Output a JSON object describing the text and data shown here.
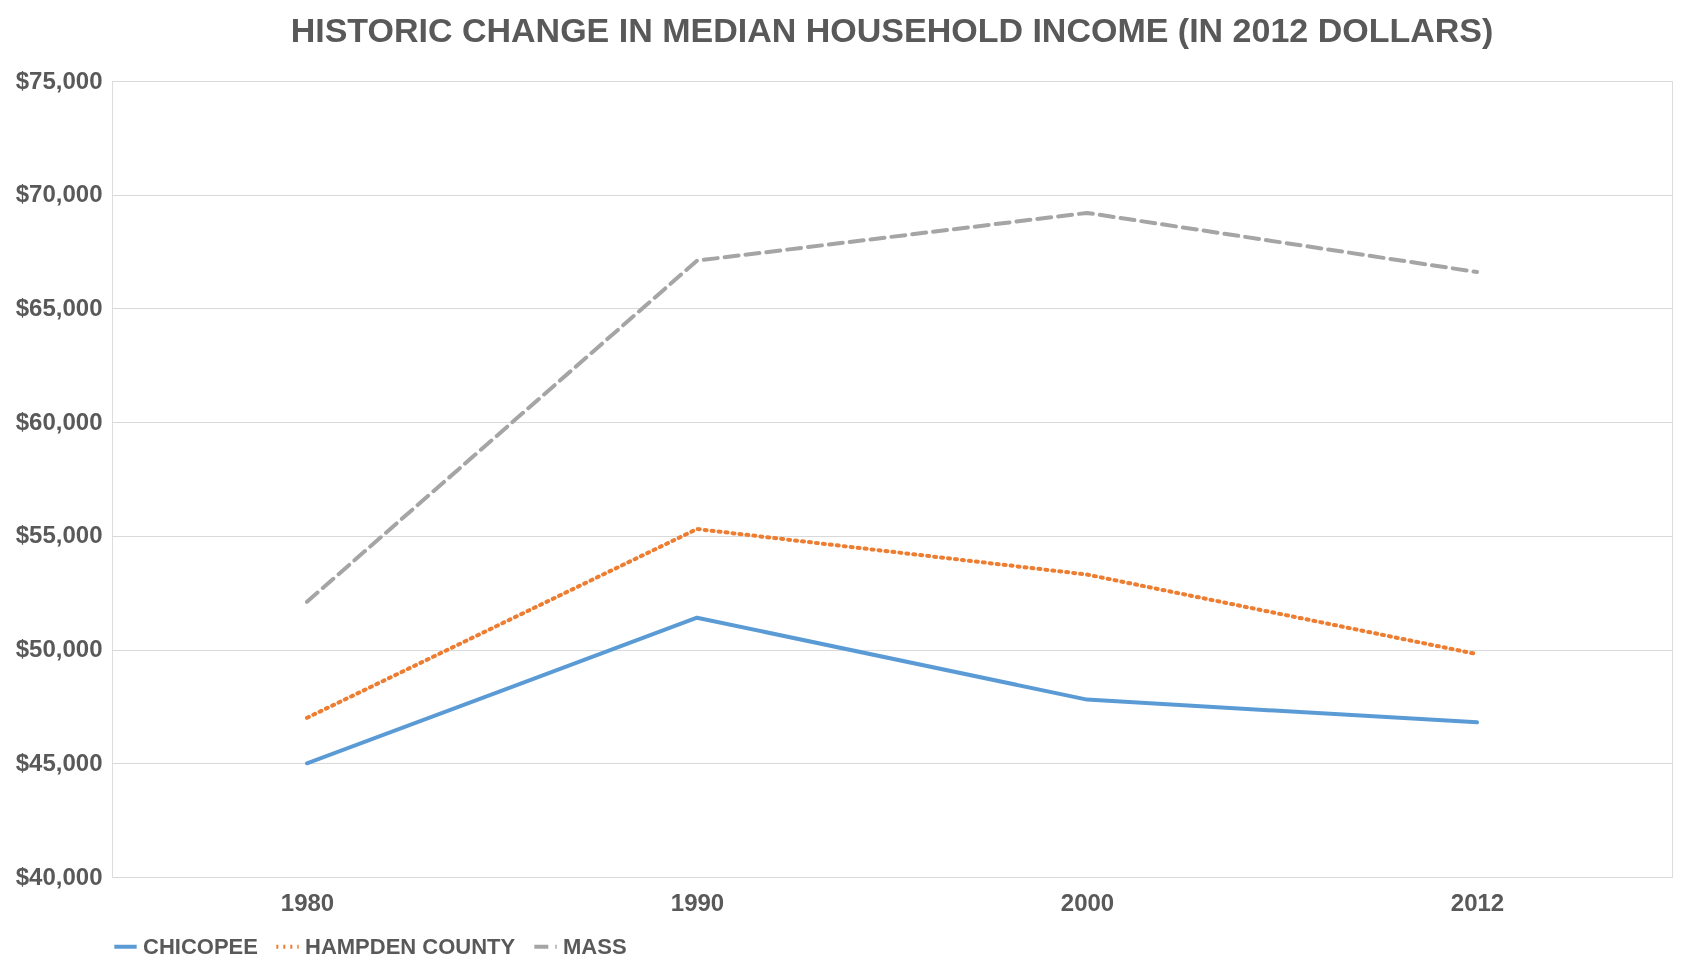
{
  "chart_data": {
    "type": "line",
    "title": "HISTORIC CHANGE IN MEDIAN HOUSEHOLD INCOME (IN 2012 DOLLARS)",
    "categories": [
      "1980",
      "1990",
      "2000",
      "2012"
    ],
    "series": [
      {
        "name": "CHICOPEE",
        "color": "#5b9bd5",
        "line_style": "solid",
        "values": [
          45000,
          51400,
          47800,
          46800
        ]
      },
      {
        "name": "HAMPDEN COUNTY",
        "color": "#ed7d31",
        "line_style": "dotted",
        "values": [
          47000,
          55300,
          53300,
          49800
        ]
      },
      {
        "name": "MASS",
        "color": "#a5a5a5",
        "line_style": "dashed",
        "values": [
          52100,
          67100,
          69200,
          66600
        ]
      }
    ],
    "ylim": [
      40000,
      75000
    ],
    "yticks": [
      {
        "value": 40000,
        "label": "$40,000"
      },
      {
        "value": 45000,
        "label": "$45,000"
      },
      {
        "value": 50000,
        "label": "$50,000"
      },
      {
        "value": 55000,
        "label": "$55,000"
      },
      {
        "value": 60000,
        "label": "$60,000"
      },
      {
        "value": 65000,
        "label": "$65,000"
      },
      {
        "value": 70000,
        "label": "$70,000"
      },
      {
        "value": 75000,
        "label": "$75,000"
      }
    ],
    "grid": "y",
    "legend": "bottom"
  }
}
